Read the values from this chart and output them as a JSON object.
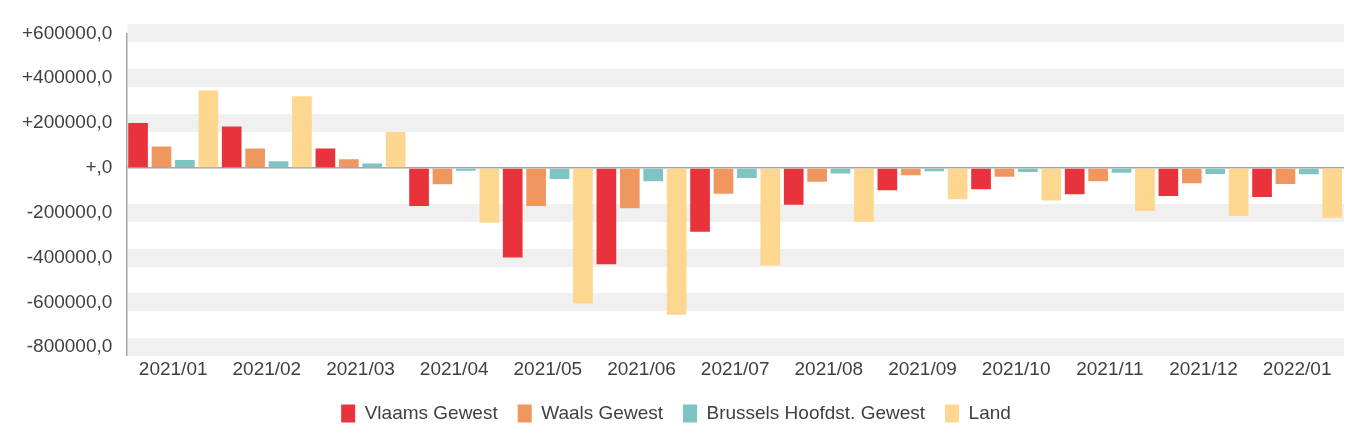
{
  "chart_data": {
    "type": "bar",
    "categories": [
      "2021/01",
      "2021/02",
      "2021/03",
      "2021/04",
      "2021/05",
      "2021/06",
      "2021/07",
      "2021/08",
      "2021/09",
      "2021/10",
      "2021/11",
      "2021/12",
      "2022/01"
    ],
    "series": [
      {
        "name": "Vlaams Gewest",
        "color": "#e8323c",
        "values": [
          200000,
          185000,
          86000,
          -170000,
          -400000,
          -430000,
          -285000,
          -165000,
          -100000,
          -95000,
          -118000,
          -125000,
          -130000
        ]
      },
      {
        "name": "Waals Gewest",
        "color": "#f0975f",
        "values": [
          95000,
          86000,
          39000,
          -73000,
          -170000,
          -180000,
          -115000,
          -62000,
          -33000,
          -40000,
          -60000,
          -68000,
          -72000
        ]
      },
      {
        "name": "Brussels Hoofdst. Gewest",
        "color": "#7ec4c2",
        "values": [
          35000,
          30000,
          20000,
          -13000,
          -50000,
          -60000,
          -45000,
          -25000,
          -15000,
          -18000,
          -22000,
          -27000,
          -28000
        ]
      },
      {
        "name": "Land",
        "color": "#fdd68f",
        "values": [
          345000,
          320000,
          160000,
          -245000,
          -605000,
          -655000,
          -435000,
          -240000,
          -140000,
          -145000,
          -192000,
          -215000,
          -222000
        ]
      }
    ],
    "ylim": [
      -800000,
      600000
    ],
    "yticks": [
      {
        "value": -800000,
        "label": "-800000,0"
      },
      {
        "value": -600000,
        "label": "-600000,0"
      },
      {
        "value": -400000,
        "label": "-400000,0"
      },
      {
        "value": -200000,
        "label": "-200000,0"
      },
      {
        "value": 0,
        "label": "+,0"
      },
      {
        "value": 200000,
        "label": "+200000,0"
      },
      {
        "value": 400000,
        "label": "+400000,0"
      },
      {
        "value": 600000,
        "label": "+600000,0"
      }
    ],
    "grid": "y",
    "legend": "bottom"
  }
}
